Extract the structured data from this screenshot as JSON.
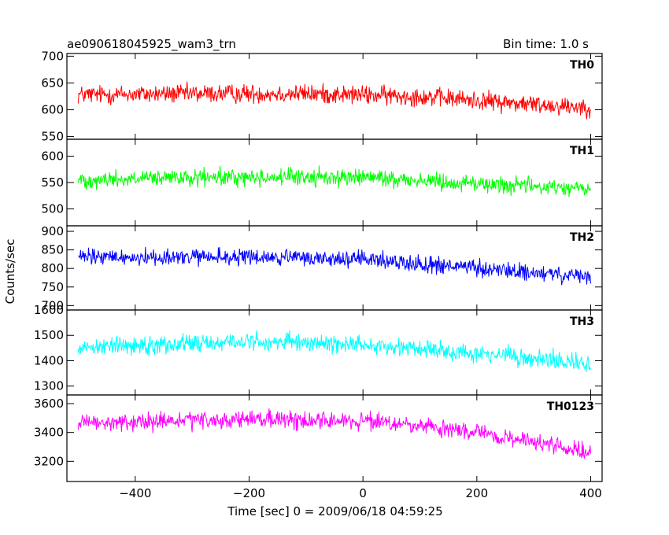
{
  "header": {
    "title": "ae090618045925_wam3_trn",
    "bin_time": "Bin time: 1.0 s"
  },
  "chart_data": {
    "type": "line",
    "xlabel": "Time [sec] 0 = 2009/06/18 04:59:25",
    "ylabel": "Counts/sec",
    "xlim": [
      -520,
      420
    ],
    "x_range": [
      -500,
      400
    ],
    "x_ticks": [
      -400,
      -200,
      0,
      200,
      400
    ],
    "x_tick_labels": [
      "−400",
      "−200",
      "0",
      "200",
      "400"
    ],
    "bin_size": 1.0,
    "grid": false,
    "panels": [
      {
        "name": "TH0",
        "color": "#ff0000",
        "ylim": [
          545,
          705
        ],
        "y_ticks": [
          550,
          600,
          650,
          700
        ],
        "y_tick_labels": [
          "550",
          "600",
          "650",
          "700"
        ],
        "trend": [
          [
            -500,
            628
          ],
          [
            -300,
            630
          ],
          [
            -100,
            630
          ],
          [
            100,
            625
          ],
          [
            300,
            610
          ],
          [
            400,
            605
          ]
        ],
        "noise": 22
      },
      {
        "name": "TH1",
        "color": "#00ff00",
        "ylim": [
          468,
          632
        ],
        "y_ticks": [
          500,
          550,
          600
        ],
        "y_tick_labels": [
          "500",
          "550",
          "600"
        ],
        "trend": [
          [
            -500,
            555
          ],
          [
            -200,
            560
          ],
          [
            0,
            560
          ],
          [
            200,
            548
          ],
          [
            400,
            538
          ]
        ],
        "noise": 20
      },
      {
        "name": "TH2",
        "color": "#0000ff",
        "ylim": [
          688,
          915
        ],
        "y_ticks": [
          700,
          750,
          800,
          850,
          900
        ],
        "y_tick_labels": [
          "700",
          "750",
          "800",
          "850",
          "900"
        ],
        "trend": [
          [
            -500,
            830
          ],
          [
            -200,
            830
          ],
          [
            0,
            825
          ],
          [
            200,
            800
          ],
          [
            400,
            775
          ]
        ],
        "noise": 28
      },
      {
        "name": "TH3",
        "color": "#00ffff",
        "ylim": [
          1265,
          1600
        ],
        "y_ticks": [
          1300,
          1400,
          1500,
          1600
        ],
        "y_tick_labels": [
          "1300",
          "1400",
          "1500",
          "1600"
        ],
        "trend": [
          [
            -500,
            1455
          ],
          [
            -200,
            1475
          ],
          [
            0,
            1465
          ],
          [
            200,
            1430
          ],
          [
            400,
            1385
          ]
        ],
        "noise": 45
      },
      {
        "name": "TH0123",
        "color": "#ff00ff",
        "ylim": [
          3060,
          3660
        ],
        "y_ticks": [
          3200,
          3400,
          3600
        ],
        "y_tick_labels": [
          "3200",
          "3400",
          "3600"
        ],
        "trend": [
          [
            -500,
            3460
          ],
          [
            -200,
            3490
          ],
          [
            0,
            3480
          ],
          [
            200,
            3400
          ],
          [
            400,
            3260
          ]
        ],
        "noise": 75
      }
    ]
  }
}
